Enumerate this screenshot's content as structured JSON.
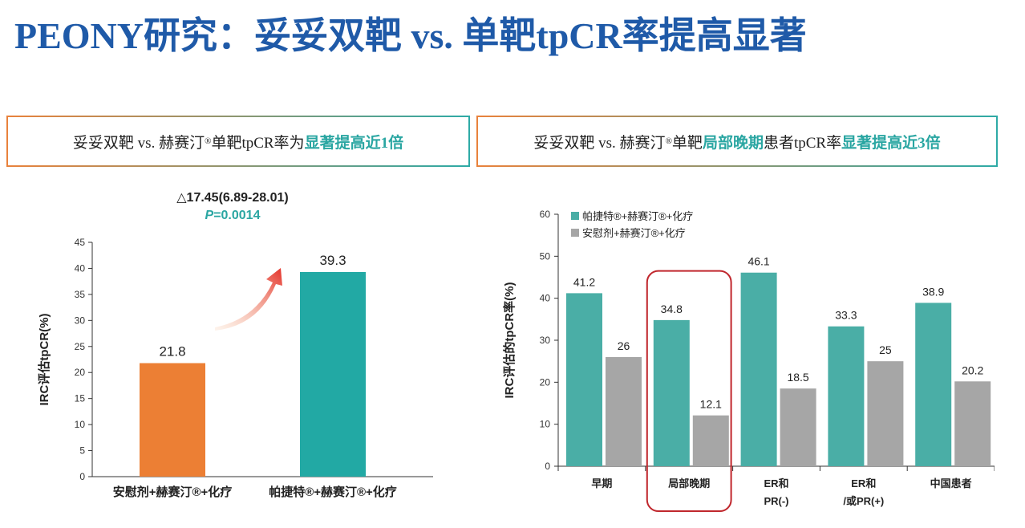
{
  "title": "PEONY研究：妥妥双靶 vs. 单靶tpCR率提高显著",
  "left_panel": {
    "header_parts": [
      "妥妥双靶 vs. 赫赛汀",
      "®",
      "单靶tpCR率为",
      "显著提高近1倍"
    ],
    "delta": "△17.45(6.89-28.01)",
    "p_label": "P",
    "p_value": "=0.0014"
  },
  "right_panel": {
    "header_parts": [
      "妥妥双靶 vs. 赫赛汀",
      "®",
      "单靶",
      "局部晚期",
      "患者tpCR率",
      "显著提高近3倍"
    ],
    "highlight_group": "局部晚期"
  },
  "colors": {
    "title": "#1f5aa8",
    "teal": "#2aa6a2",
    "teal_bar": "#4aaea6",
    "orange": "#ec7f34",
    "gray": "#a6a6a6",
    "highlight_box": "#c0272d"
  },
  "chart_data": [
    {
      "type": "bar",
      "ylabel": "IRC评估tpCR(%)",
      "ylim": [
        0,
        45
      ],
      "yticks": [
        0,
        5,
        10,
        15,
        20,
        25,
        30,
        35,
        40,
        45
      ],
      "categories": [
        "安慰剂+赫赛汀®+化疗",
        "帕捷特®+赫赛汀®+化疗"
      ],
      "values": [
        21.8,
        39.3
      ],
      "value_labels": [
        "21.8",
        "39.3"
      ],
      "bar_colors": [
        "#ec7f34",
        "#22a9a4"
      ]
    },
    {
      "type": "bar",
      "ylabel": "IRC评估的tpCR率(%)",
      "ylim": [
        0,
        60
      ],
      "yticks": [
        0,
        10,
        20,
        30,
        40,
        50,
        60
      ],
      "categories": [
        "早期",
        "局部晚期",
        "ER和\nPR(-)",
        "ER和\n/或PR(+)",
        "中国患者"
      ],
      "series": [
        {
          "name": "帕捷特®+赫赛汀®+化疗",
          "values": [
            41.2,
            34.8,
            46.1,
            33.3,
            38.9
          ],
          "labels": [
            "41.2",
            "34.8",
            "46.1",
            "33.3",
            "38.9"
          ],
          "color": "#4aaea6"
        },
        {
          "name": "安慰剂+赫赛汀®+化疗",
          "values": [
            26,
            12.1,
            18.5,
            25,
            20.2
          ],
          "labels": [
            "26",
            "12.1",
            "18.5",
            "25",
            "20.2"
          ],
          "color": "#a6a6a6"
        }
      ],
      "legend_position": "top-left"
    }
  ]
}
